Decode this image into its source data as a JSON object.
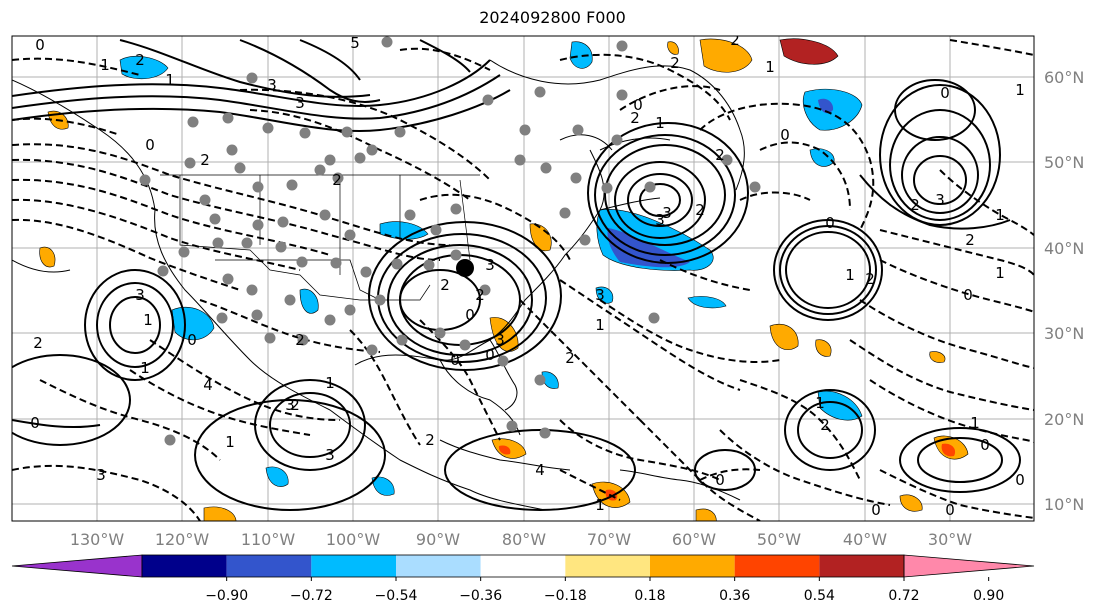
{
  "title": "2024092800 F000",
  "map": {
    "lon_labels": [
      "130°W",
      "120°W",
      "110°W",
      "100°W",
      "90°W",
      "80°W",
      "70°W",
      "60°W",
      "50°W",
      "40°W",
      "30°W"
    ],
    "lat_labels": [
      "60°N",
      "50°N",
      "40°N",
      "30°N",
      "20°N",
      "10°N"
    ],
    "contour_labels": [
      "0",
      "2",
      "1",
      "5",
      "3",
      "0",
      "1",
      "3",
      "2",
      "2",
      "3",
      "1",
      "0",
      "2",
      "1",
      "2",
      "4",
      "1",
      "3",
      "2",
      "1",
      "0",
      "3",
      "3",
      "4",
      "1",
      "2",
      "3",
      "3",
      "2",
      "2",
      "0",
      "1",
      "2",
      "0",
      "3",
      "2",
      "1",
      "2",
      "1",
      "0",
      "1",
      "0",
      "1",
      "0",
      "0",
      "1",
      "0",
      "0",
      "2",
      "1",
      "0",
      "1",
      "2",
      "0",
      "2",
      "2",
      "1",
      "0",
      "2",
      "3",
      "0",
      "3",
      "3",
      "2",
      "0",
      "2"
    ],
    "colors": {
      "land": "#ffffff",
      "grid": "#b0b0b0",
      "contour": "#000000",
      "stations": "#808080",
      "center_marker": "#000000"
    }
  },
  "colorbar": {
    "colors": [
      "#9933cc",
      "#00008b",
      "#3355cc",
      "#00bbff",
      "#aaddff",
      "#ffffff",
      "#ffe680",
      "#ffaa00",
      "#ff4400",
      "#b22222",
      "#ff88aa"
    ],
    "ticks": [
      "−0.90",
      "−0.72",
      "−0.54",
      "−0.36",
      "−0.18",
      "0.18",
      "0.36",
      "0.54",
      "0.72",
      "0.90"
    ]
  }
}
